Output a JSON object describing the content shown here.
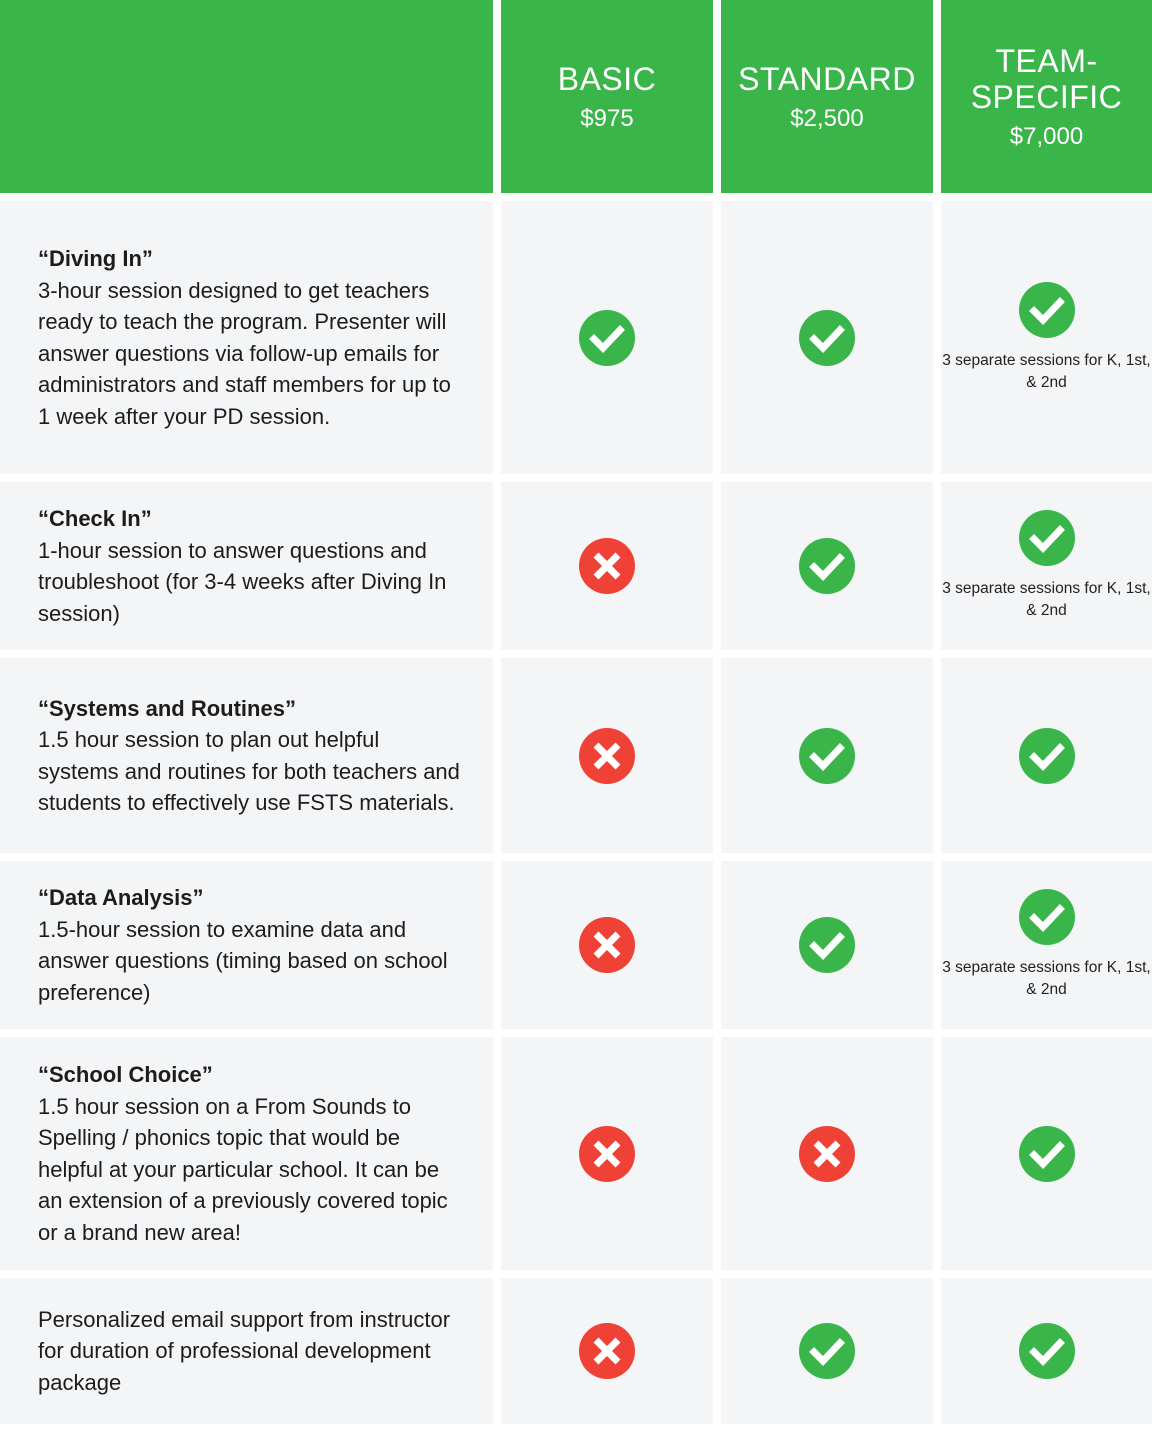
{
  "colors": {
    "header": "#3ab54a",
    "check": "#3ab54a",
    "cross": "#ef4136",
    "cell": "#f4f5f7"
  },
  "header": {
    "tiers": [
      {
        "name": "BASIC",
        "price": "$975"
      },
      {
        "name": "STANDARD",
        "price": "$2,500"
      },
      {
        "name": "TEAM-SPECIFIC",
        "price": "$7,000"
      }
    ]
  },
  "rows": [
    {
      "title": "“Diving In”",
      "description": "3-hour session designed to get teachers ready to teach the program. Presenter will answer questions via follow-up emails for administrators and staff members for up to 1 week after your PD session.",
      "cells": [
        {
          "icon": "check"
        },
        {
          "icon": "check"
        },
        {
          "icon": "check",
          "note": "3 separate sessions for K, 1st, & 2nd"
        }
      ]
    },
    {
      "title": "“Check In”",
      "description": "1-hour session to answer questions and troubleshoot (for 3-4 weeks after Diving In session)",
      "cells": [
        {
          "icon": "cross"
        },
        {
          "icon": "check"
        },
        {
          "icon": "check",
          "note": "3 separate sessions for K, 1st, & 2nd"
        }
      ]
    },
    {
      "title": "“Systems and Routines”",
      "description": "1.5 hour session to plan out helpful systems and routines for both teachers and students to effectively use FSTS materials.",
      "cells": [
        {
          "icon": "cross"
        },
        {
          "icon": "check"
        },
        {
          "icon": "check"
        }
      ]
    },
    {
      "title": "“Data Analysis”",
      "description": "1.5-hour session to examine data and answer questions (timing based on school preference)",
      "cells": [
        {
          "icon": "cross"
        },
        {
          "icon": "check"
        },
        {
          "icon": "check",
          "note": "3 separate sessions for K, 1st, & 2nd"
        }
      ]
    },
    {
      "title": "“School Choice”",
      "description": "1.5 hour session on a From Sounds to Spelling / phonics topic that would be helpful at your particular school. It can be an extension of a previously covered topic or a brand new area!",
      "cells": [
        {
          "icon": "cross"
        },
        {
          "icon": "cross"
        },
        {
          "icon": "check"
        }
      ]
    },
    {
      "title": "",
      "description": "Personalized email support from instructor for duration of professional development package",
      "cells": [
        {
          "icon": "cross"
        },
        {
          "icon": "check"
        },
        {
          "icon": "check"
        }
      ]
    }
  ]
}
